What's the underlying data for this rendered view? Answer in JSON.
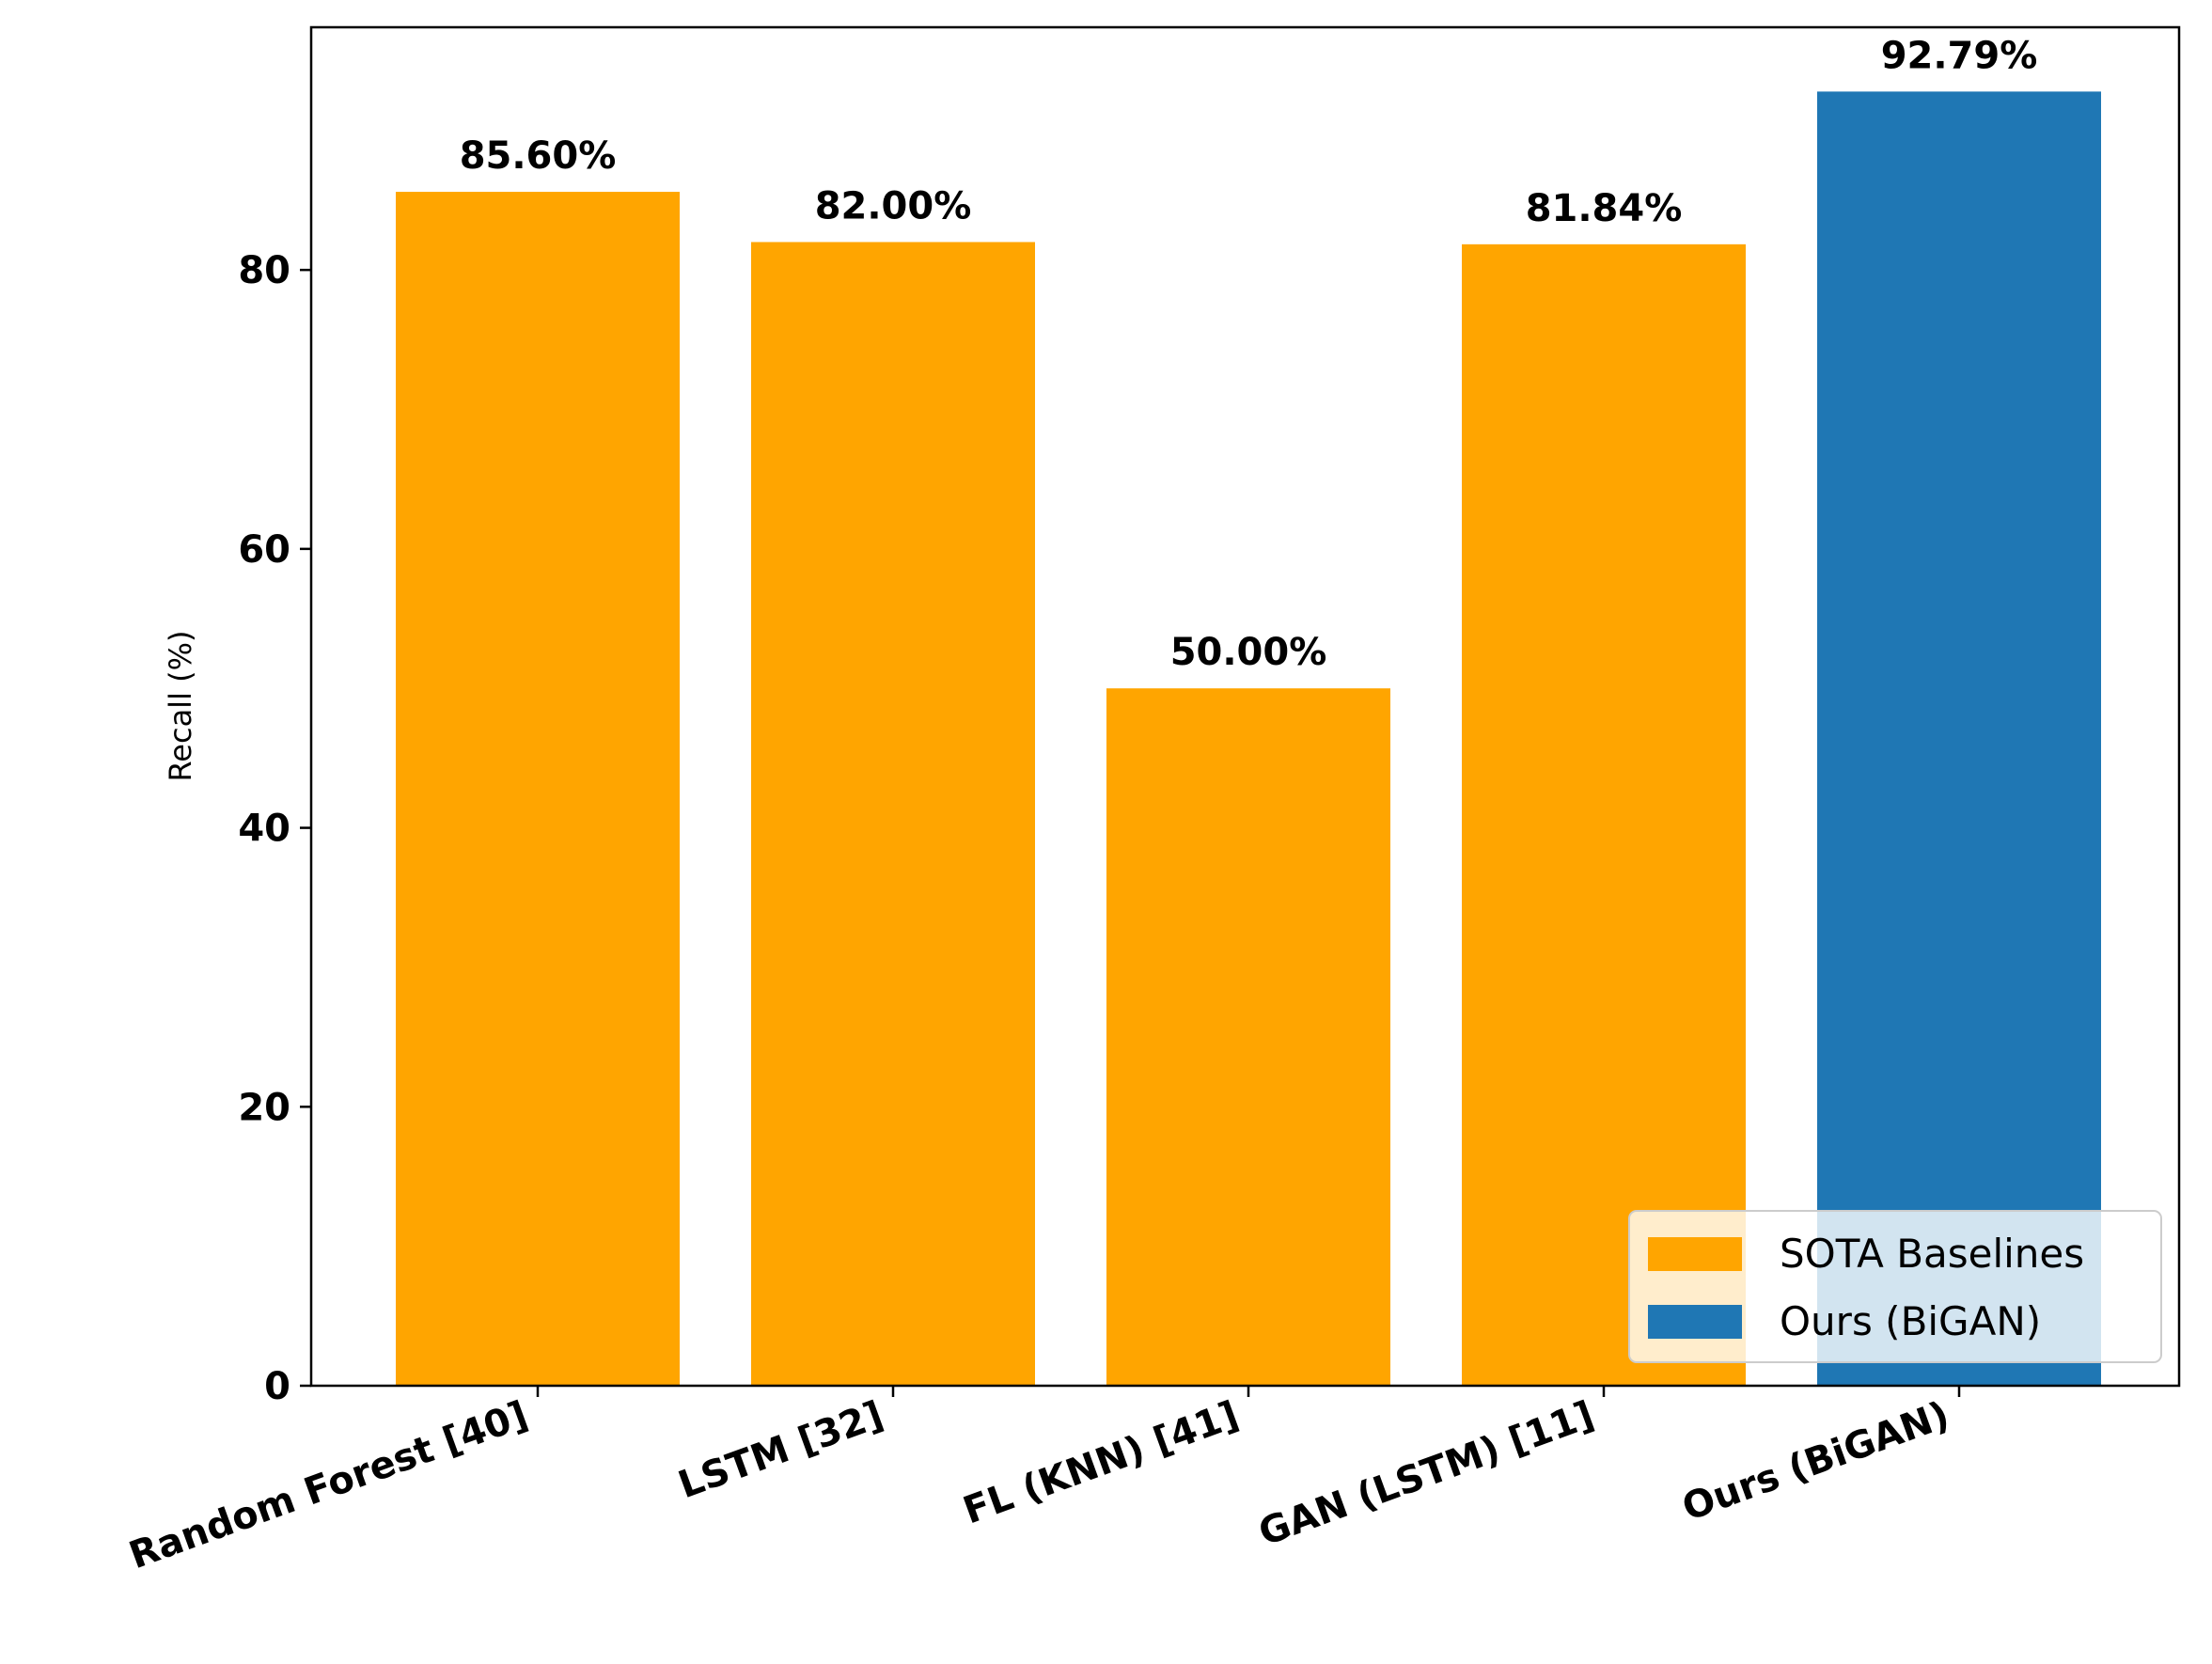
{
  "chart_data": {
    "type": "bar",
    "categories": [
      "Random Forest [40]",
      "LSTM [32]",
      "FL (KNN) [41]",
      "GAN (LSTM) [11]",
      "Ours (BiGAN)"
    ],
    "values": [
      85.6,
      82.0,
      50.0,
      81.84,
      92.79
    ],
    "value_labels": [
      "85.60%",
      "82.00%",
      "50.00%",
      "81.84%",
      "92.79%"
    ],
    "groups": [
      "SOTA Baselines",
      "SOTA Baselines",
      "SOTA Baselines",
      "SOTA Baselines",
      "Ours (BiGAN)"
    ],
    "group_colors": {
      "SOTA Baselines": "#FFA500",
      "Ours (BiGAN)": "#1F77B4"
    },
    "title": "",
    "xlabel": "",
    "ylabel": "Recall (%)",
    "ylim": [
      0,
      97.4
    ],
    "yticks": [
      0,
      20,
      40,
      60,
      80
    ],
    "grid": false,
    "legend": {
      "position": "lower-right",
      "entries": [
        {
          "label": "SOTA Baselines",
          "color": "#FFA500"
        },
        {
          "label": "Ours (BiGAN)",
          "color": "#1F77B4"
        }
      ]
    }
  }
}
